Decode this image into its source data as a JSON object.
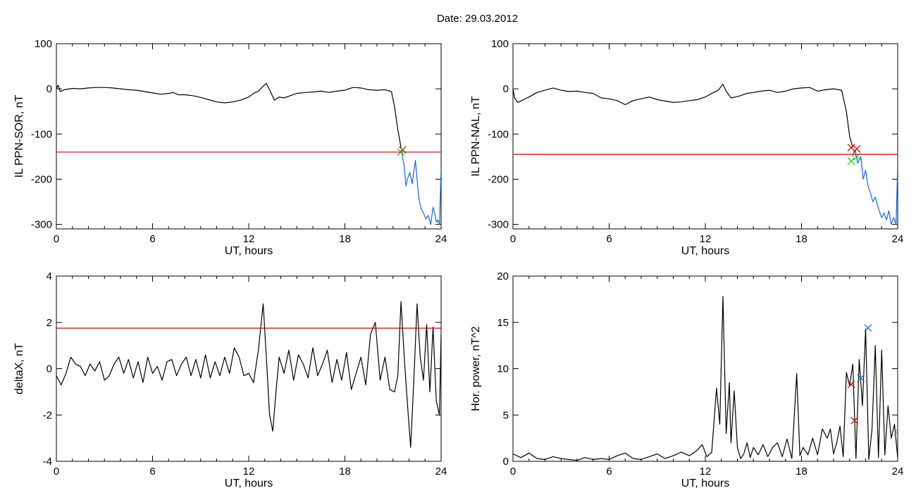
{
  "page_title": "Date:  29.03.2012",
  "chart_data": [
    {
      "type": "line",
      "ylabel": "IL PPN-SOR, nT",
      "xlabel": "UT, hours",
      "xlim": [
        0,
        24
      ],
      "ylim": [
        -310,
        100
      ],
      "xticks": [
        "0",
        "6",
        "12",
        "18",
        "24"
      ],
      "yticks": [
        -300,
        -200,
        -100,
        0,
        100
      ],
      "threshold": -140,
      "series": [
        {
          "color": "#000000",
          "x": [
            0,
            0.1,
            0.25,
            0.5,
            1,
            1.5,
            2,
            2.5,
            3,
            3.5,
            4,
            4.5,
            5,
            5.5,
            6,
            6.5,
            7,
            7.3,
            7.6,
            8,
            8.5,
            9,
            9.5,
            10,
            10.5,
            11,
            11.5,
            12,
            12.3,
            12.6,
            12.9,
            13.1,
            13.3,
            13.6,
            13.9,
            14.2,
            14.6,
            15,
            15.5,
            16,
            16.5,
            17,
            17.5,
            18,
            18.5,
            19,
            19.5,
            20,
            20.5,
            20.9,
            21.1,
            21.3,
            21.5
          ],
          "y": [
            0,
            8,
            -6,
            -2,
            1,
            0,
            2,
            3,
            3,
            2,
            0,
            -2,
            -3,
            -6,
            -9,
            -12,
            -10,
            -8,
            -13,
            -13,
            -15,
            -19,
            -24,
            -29,
            -31,
            -29,
            -25,
            -18,
            -10,
            -5,
            6,
            12,
            -2,
            -25,
            -18,
            -20,
            -15,
            -10,
            -8,
            -7,
            -5,
            -8,
            -5,
            -3,
            3,
            2,
            -2,
            -3,
            -2,
            -6,
            -40,
            -90,
            -130
          ]
        },
        {
          "color": "#1565e6",
          "x": [
            21.5,
            21.7,
            21.8,
            21.9,
            22.05,
            22.2,
            22.4,
            22.5,
            22.6,
            22.75,
            22.9,
            23.05,
            23.2,
            23.35,
            23.5,
            23.6,
            23.7,
            23.8,
            23.9,
            24
          ],
          "y": [
            -135,
            -170,
            -215,
            -200,
            -185,
            -210,
            -158,
            -200,
            -240,
            -265,
            -275,
            -288,
            -280,
            -300,
            -262,
            -275,
            -295,
            -290,
            -300,
            -175
          ]
        }
      ],
      "markers": [
        {
          "color": "#d00000",
          "x": 21.6,
          "y": -135
        },
        {
          "color": "#22c022",
          "x": 21.5,
          "y": -140
        }
      ]
    },
    {
      "type": "line",
      "ylabel": "IL PPN-NAL, nT",
      "xlabel": "UT, hours",
      "xlim": [
        0,
        24
      ],
      "ylim": [
        -310,
        100
      ],
      "xticks": [
        "0",
        "6",
        "12",
        "18",
        "24"
      ],
      "yticks": [
        -300,
        -200,
        -100,
        0,
        100
      ],
      "threshold": -145,
      "series": [
        {
          "color": "#000000",
          "x": [
            0,
            0.1,
            0.3,
            0.6,
            1,
            1.5,
            2,
            2.5,
            3,
            3.5,
            4,
            4.5,
            5,
            5.5,
            6,
            6.5,
            7,
            7.5,
            8,
            8.5,
            9,
            9.5,
            10,
            10.5,
            11,
            11.5,
            12,
            12.4,
            12.8,
            13.1,
            13.3,
            13.6,
            13.9,
            14.2,
            14.6,
            15,
            15.5,
            16,
            16.5,
            17,
            17.5,
            18,
            18.5,
            19,
            19.5,
            20,
            20.5,
            20.8,
            21.0,
            21.2
          ],
          "y": [
            0,
            -20,
            -30,
            -25,
            -18,
            -8,
            -3,
            2,
            -3,
            -6,
            -5,
            -8,
            -10,
            -20,
            -22,
            -26,
            -35,
            -26,
            -22,
            -18,
            -24,
            -27,
            -30,
            -29,
            -26,
            -24,
            -18,
            -10,
            -3,
            10,
            -5,
            -20,
            -18,
            -15,
            -10,
            -8,
            -5,
            -3,
            -8,
            -5,
            0,
            2,
            3,
            -5,
            -2,
            0,
            -3,
            -50,
            -105,
            -130
          ]
        },
        {
          "color": "#1565e6",
          "x": [
            21.2,
            21.35,
            21.5,
            21.7,
            21.85,
            22.0,
            22.15,
            22.3,
            22.45,
            22.6,
            22.8,
            23.0,
            23.15,
            23.3,
            23.45,
            23.6,
            23.75,
            23.9,
            24
          ],
          "y": [
            -150,
            -135,
            -165,
            -150,
            -200,
            -180,
            -215,
            -230,
            -250,
            -240,
            -265,
            -285,
            -275,
            -290,
            -270,
            -300,
            -285,
            -300,
            -170
          ]
        }
      ],
      "markers": [
        {
          "color": "#d00000",
          "x": 21.1,
          "y": -130
        },
        {
          "color": "#d00000",
          "x": 21.45,
          "y": -133
        },
        {
          "color": "#22c022",
          "x": 21.1,
          "y": -160
        },
        {
          "color": "#22c022",
          "x": 21.45,
          "y": -150
        }
      ]
    },
    {
      "type": "line",
      "ylabel": "deltaX, nT",
      "xlabel": "UT, hours",
      "xlim": [
        0,
        24
      ],
      "ylim": [
        -4,
        4
      ],
      "xticks": [
        "0",
        "6",
        "12",
        "18",
        "24"
      ],
      "yticks": [
        -4,
        -2,
        0,
        2,
        4
      ],
      "threshold": 1.75,
      "series": [
        {
          "color": "#000000",
          "x": [
            0,
            0.3,
            0.6,
            0.9,
            1.2,
            1.5,
            1.8,
            2.1,
            2.4,
            2.7,
            3.0,
            3.3,
            3.6,
            3.9,
            4.2,
            4.5,
            4.8,
            5.1,
            5.4,
            5.7,
            6.0,
            6.3,
            6.6,
            6.9,
            7.2,
            7.5,
            7.8,
            8.1,
            8.4,
            8.7,
            9.0,
            9.3,
            9.6,
            9.9,
            10.2,
            10.5,
            10.8,
            11.1,
            11.4,
            11.7,
            12.0,
            12.3,
            12.6,
            12.9,
            13.1,
            13.3,
            13.5,
            13.7,
            13.9,
            14.2,
            14.5,
            14.8,
            15.1,
            15.4,
            15.7,
            16.0,
            16.3,
            16.6,
            16.9,
            17.2,
            17.5,
            17.8,
            18.1,
            18.4,
            18.7,
            19.0,
            19.3,
            19.6,
            19.9,
            20.2,
            20.5,
            20.8,
            21.1,
            21.3,
            21.5,
            21.7,
            21.9,
            22.1,
            22.3,
            22.5,
            22.7,
            22.9,
            23.1,
            23.3,
            23.5,
            23.7,
            23.9,
            24
          ],
          "y": [
            -0.3,
            -0.7,
            -0.2,
            0.5,
            0.2,
            0.1,
            -0.3,
            0.2,
            -0.1,
            0.3,
            -0.5,
            -0.3,
            0.2,
            0.5,
            -0.2,
            0.4,
            -0.4,
            0.3,
            -0.6,
            0.5,
            -0.2,
            0.1,
            -0.5,
            0.3,
            0.4,
            -0.3,
            0.2,
            0.5,
            -0.3,
            0.4,
            -0.4,
            0.6,
            -0.4,
            0.3,
            -0.3,
            0.5,
            -0.2,
            0.9,
            0.5,
            -0.3,
            -0.2,
            -0.6,
            0.8,
            2.8,
            0.5,
            -2.0,
            -2.7,
            -1.0,
            0.5,
            -0.2,
            0.8,
            -0.5,
            0.6,
            0.2,
            -0.4,
            0.9,
            -0.3,
            0.2,
            0.8,
            -0.6,
            0.4,
            -0.5,
            0.7,
            -0.9,
            -0.2,
            0.5,
            -0.7,
            1.5,
            2.0,
            -0.5,
            0.5,
            -0.9,
            -1.0,
            -0.3,
            2.9,
            0.5,
            -1.5,
            -3.4,
            -0.5,
            2.8,
            0.5,
            -0.5,
            1.9,
            -1.0,
            1.8,
            -1.4,
            -2.0,
            1.5
          ]
        }
      ],
      "markers": []
    },
    {
      "type": "line",
      "ylabel": "Hor. power, nT^2",
      "xlabel": "UT, hours",
      "xlim": [
        0,
        24
      ],
      "ylim": [
        0,
        20
      ],
      "xticks": [
        "0",
        "6",
        "12",
        "18",
        "24"
      ],
      "yticks": [
        0,
        5,
        10,
        15,
        20
      ],
      "series": [
        {
          "color": "#000000",
          "x": [
            0,
            0.5,
            1,
            1.5,
            2,
            2.5,
            3,
            3.5,
            4,
            4.5,
            5,
            5.5,
            6,
            6.5,
            7,
            7.5,
            8,
            8.5,
            9,
            9.5,
            10,
            10.5,
            11,
            11.5,
            11.8,
            12.1,
            12.4,
            12.7,
            12.9,
            13.1,
            13.3,
            13.5,
            13.6,
            13.8,
            14.0,
            14.2,
            14.4,
            14.6,
            14.8,
            15.0,
            15.3,
            15.6,
            15.9,
            16.2,
            16.5,
            16.8,
            17.1,
            17.4,
            17.7,
            17.9,
            18.1,
            18.4,
            18.7,
            19.0,
            19.3,
            19.6,
            19.8,
            20.0,
            20.2,
            20.4,
            20.6,
            20.8,
            21.0,
            21.2,
            21.4,
            21.6,
            21.8,
            22.0,
            22.2,
            22.4,
            22.6,
            22.8,
            23.0,
            23.2,
            23.4,
            23.6,
            23.8,
            24
          ],
          "y": [
            0.8,
            0.4,
            0.9,
            0.3,
            0.2,
            0.5,
            0.3,
            0.2,
            0.1,
            0.4,
            0.2,
            0.3,
            0.2,
            0.6,
            0.9,
            0.3,
            0.2,
            0.5,
            0.8,
            0.3,
            0.6,
            1.0,
            0.6,
            1.2,
            1.8,
            0.5,
            1.0,
            7.9,
            4.0,
            17.8,
            3.0,
            8.5,
            2.0,
            7.6,
            1.5,
            0.3,
            0.8,
            2.0,
            0.4,
            1.5,
            0.7,
            1.8,
            0.5,
            1.5,
            2.0,
            0.5,
            2.4,
            0.3,
            9.5,
            0.6,
            1.5,
            0.7,
            2.5,
            0.7,
            3.5,
            2.5,
            3.5,
            0.8,
            2.0,
            3.8,
            0.5,
            9.6,
            8.2,
            10.5,
            0.3,
            11.0,
            6.0,
            14.3,
            0.2,
            3.5,
            12.5,
            0.4,
            12.0,
            0.7,
            6.0,
            2.5,
            4.0,
            0.4
          ]
        }
      ],
      "markers": [
        {
          "color": "#d00000",
          "x": 21.1,
          "y": 8.3
        },
        {
          "color": "#d00000",
          "x": 21.3,
          "y": 4.4
        },
        {
          "color": "#1565e6",
          "x": 21.7,
          "y": 9.0
        },
        {
          "color": "#1565e6",
          "x": 22.15,
          "y": 14.4
        },
        {
          "color": "#22c022",
          "x": 24,
          "y": 3.2
        }
      ]
    }
  ]
}
